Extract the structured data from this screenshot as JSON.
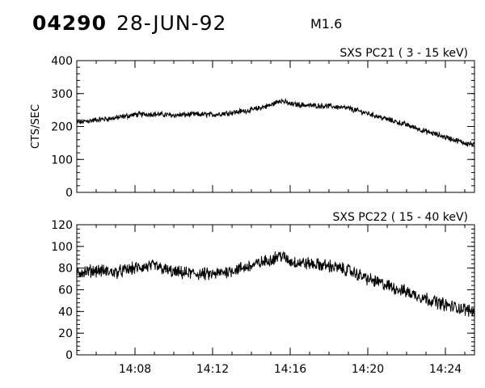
{
  "header": {
    "event_id": "04290",
    "date": "28-JUN-92",
    "flare_class": "M1.6"
  },
  "chart_data": [
    {
      "type": "line",
      "title": "SXS PC21  ( 3 - 15 keV)",
      "ylabel": "CTS/SEC",
      "xlabel": "",
      "xlim": [
        "14:05:00",
        "14:25:30"
      ],
      "ylim": [
        0,
        400
      ],
      "yticks": [
        0,
        100,
        200,
        300,
        400
      ],
      "x_tick_labels_shown": false,
      "series": [
        {
          "points": [
            [
              "14:05:00",
              212
            ],
            [
              "14:06:00",
              220
            ],
            [
              "14:07:00",
              226
            ],
            [
              "14:08:00",
              236
            ],
            [
              "14:09:00",
              238
            ],
            [
              "14:10:00",
              234
            ],
            [
              "14:11:00",
              237
            ],
            [
              "14:12:00",
              236
            ],
            [
              "14:13:00",
              242
            ],
            [
              "14:14:00",
              250
            ],
            [
              "14:15:00",
              265
            ],
            [
              "14:15:30",
              280
            ],
            [
              "14:16:00",
              268
            ],
            [
              "14:17:00",
              264
            ],
            [
              "14:18:00",
              262
            ],
            [
              "14:19:00",
              255
            ],
            [
              "14:20:00",
              240
            ],
            [
              "14:21:00",
              222
            ],
            [
              "14:22:00",
              205
            ],
            [
              "14:23:00",
              185
            ],
            [
              "14:24:00",
              168
            ],
            [
              "14:25:00",
              150
            ],
            [
              "14:25:30",
              145
            ]
          ],
          "noise": 7
        }
      ]
    },
    {
      "type": "line",
      "title": "SXS PC22  ( 15 - 40 keV)",
      "ylabel": "",
      "xlabel": "",
      "xlim": [
        "14:05:00",
        "14:25:30"
      ],
      "ylim": [
        0,
        120
      ],
      "yticks": [
        0,
        20,
        40,
        60,
        80,
        100,
        120
      ],
      "xticks": [
        "14:08",
        "14:12",
        "14:16",
        "14:20",
        "14:24"
      ],
      "series": [
        {
          "points": [
            [
              "14:05:00",
              76
            ],
            [
              "14:06:00",
              78
            ],
            [
              "14:07:00",
              76
            ],
            [
              "14:08:00",
              80
            ],
            [
              "14:09:00",
              82
            ],
            [
              "14:10:00",
              76
            ],
            [
              "14:11:00",
              75
            ],
            [
              "14:12:00",
              74
            ],
            [
              "14:13:00",
              78
            ],
            [
              "14:14:00",
              82
            ],
            [
              "14:15:00",
              88
            ],
            [
              "14:15:30",
              92
            ],
            [
              "14:16:00",
              86
            ],
            [
              "14:17:00",
              84
            ],
            [
              "14:18:00",
              82
            ],
            [
              "14:19:00",
              78
            ],
            [
              "14:20:00",
              70
            ],
            [
              "14:21:00",
              64
            ],
            [
              "14:22:00",
              58
            ],
            [
              "14:23:00",
              52
            ],
            [
              "14:24:00",
              46
            ],
            [
              "14:25:00",
              42
            ],
            [
              "14:25:30",
              40
            ]
          ],
          "noise": 5
        }
      ]
    }
  ]
}
